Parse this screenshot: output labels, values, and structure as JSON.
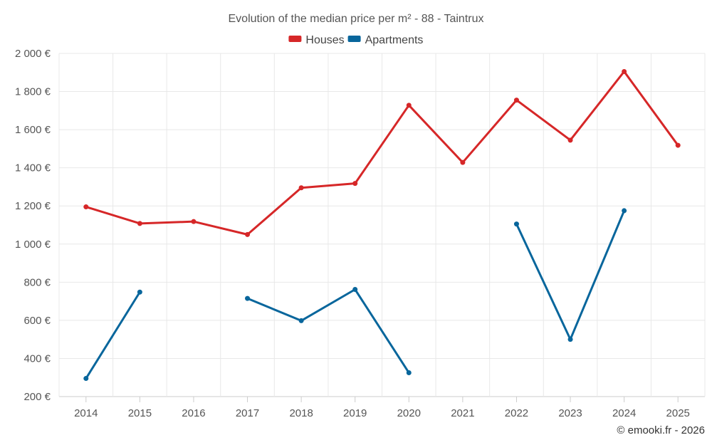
{
  "chart_data": {
    "type": "line",
    "title": "Evolution of the median price per m² - 88 - Taintrux",
    "categories": [
      "2014",
      "2015",
      "2016",
      "2017",
      "2018",
      "2019",
      "2020",
      "2021",
      "2022",
      "2023",
      "2024",
      "2025"
    ],
    "series": [
      {
        "name": "Houses",
        "color": "#d62728",
        "values": [
          1195,
          1108,
          1118,
          1050,
          1295,
          1318,
          1728,
          1428,
          1755,
          1545,
          1905,
          1518
        ]
      },
      {
        "name": "Apartments",
        "color": "#08669c",
        "values": [
          295,
          748,
          null,
          715,
          598,
          762,
          325,
          null,
          1105,
          500,
          1175,
          null
        ]
      }
    ],
    "ylim": [
      200,
      2000
    ],
    "yticks": [
      200,
      400,
      600,
      800,
      1000,
      1200,
      1400,
      1600,
      1800,
      2000
    ],
    "ytick_labels": [
      "200 €",
      "400 €",
      "600 €",
      "800 €",
      "1 000 €",
      "1 200 €",
      "1 400 €",
      "1 600 €",
      "1 800 €",
      "2 000 €"
    ],
    "grid": true,
    "legend_position": "top-center"
  },
  "credit": "© emooki.fr - 2026"
}
